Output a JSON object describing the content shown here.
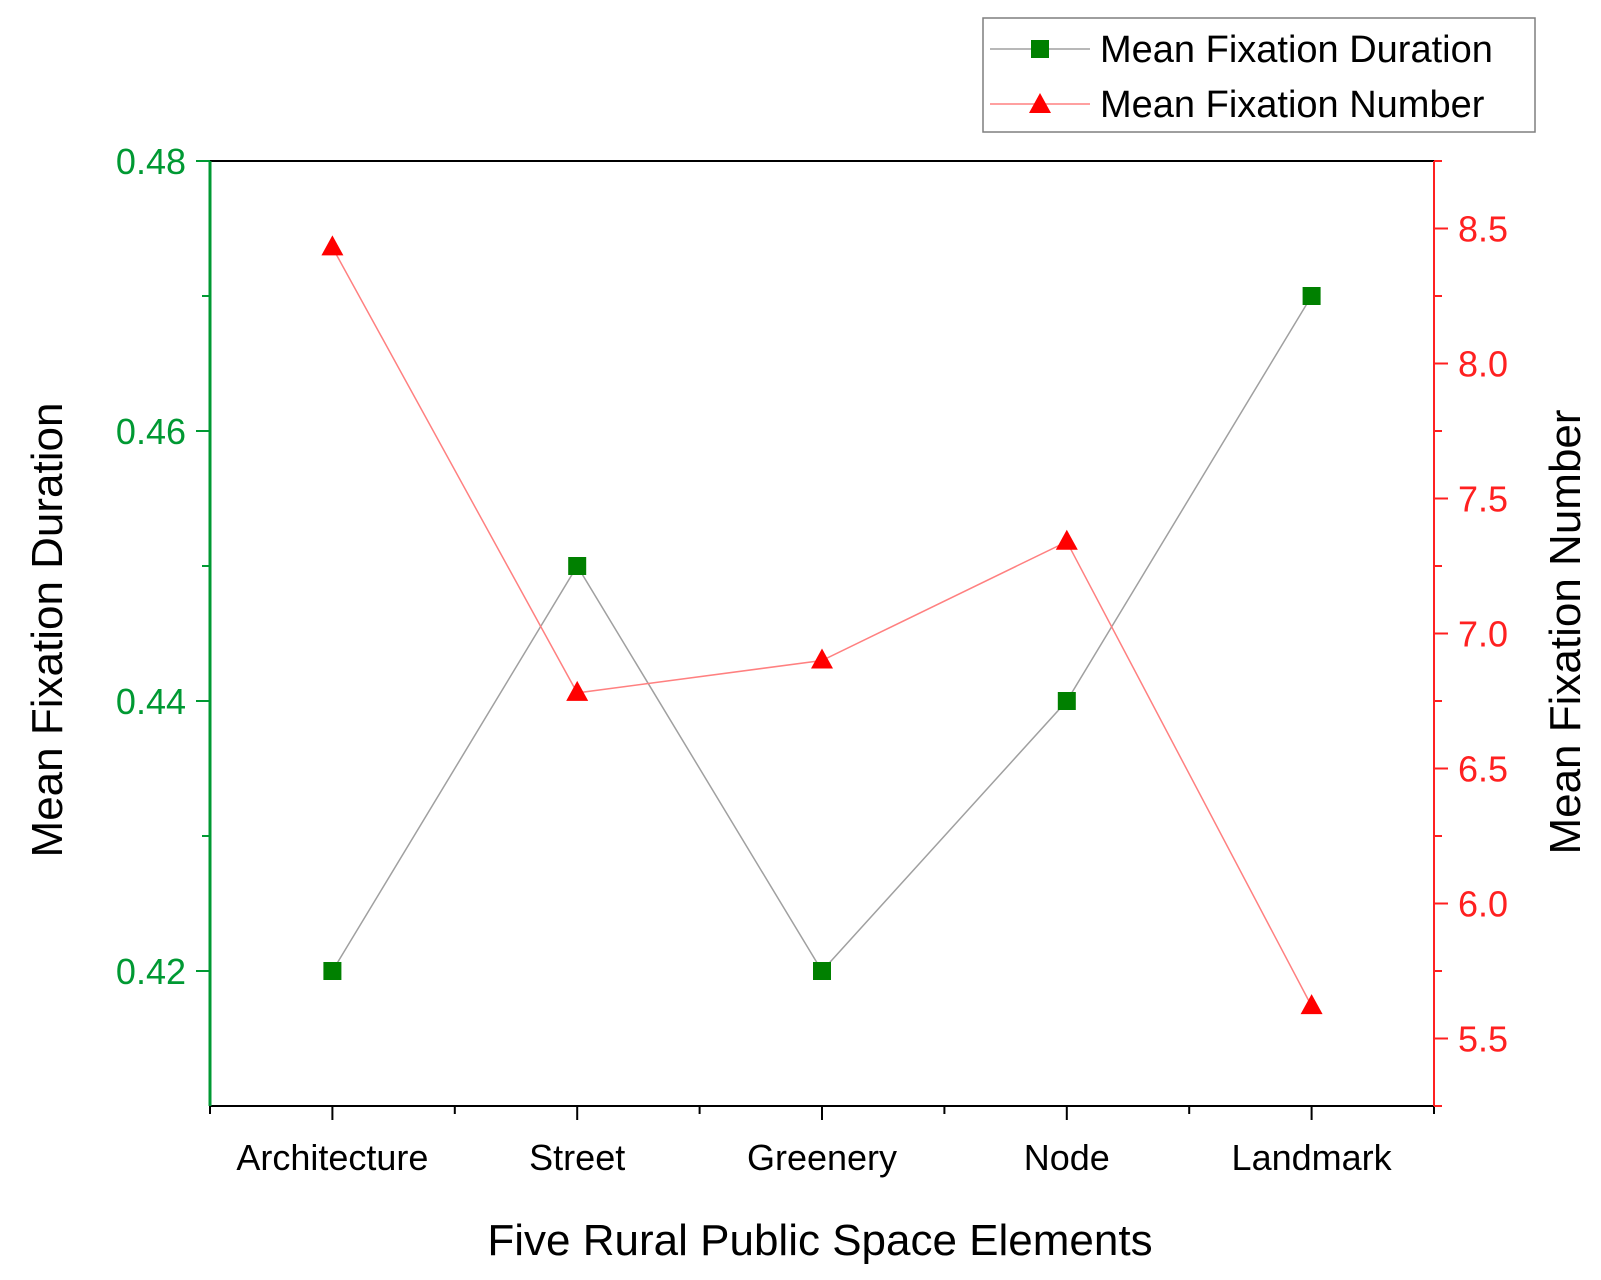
{
  "chart_data": {
    "type": "line",
    "xlabel": "Five Rural Public Space Elements",
    "categories": [
      "Architecture",
      "Street",
      "Greenery",
      "Node",
      "Landmark"
    ],
    "y_left": {
      "label": "Mean Fixation Duration",
      "lim": [
        0.41,
        0.48
      ],
      "ticks": [
        "0.42",
        "0.44",
        "0.46",
        "0.48"
      ],
      "color": "#009933"
    },
    "y_right": {
      "label": "Mean Fixation Number",
      "lim": [
        5.25,
        8.75
      ],
      "ticks": [
        "5.5",
        "6.0",
        "6.5",
        "7.0",
        "7.5",
        "8.0",
        "8.5"
      ],
      "color": "#ff2020"
    },
    "series": [
      {
        "name": "Mean Fixation Duration",
        "axis": "left",
        "marker": "square",
        "line_color": "#a0a0a0",
        "marker_color": "#008000",
        "values": [
          0.42,
          0.45,
          0.42,
          0.44,
          0.47
        ]
      },
      {
        "name": "Mean Fixation Number",
        "axis": "right",
        "marker": "triangle",
        "line_color": "#ff8080",
        "marker_color": "#ff0000",
        "values": [
          8.43,
          6.78,
          6.9,
          7.34,
          5.62
        ]
      }
    ],
    "legend_position": "top-right",
    "grid": false
  }
}
